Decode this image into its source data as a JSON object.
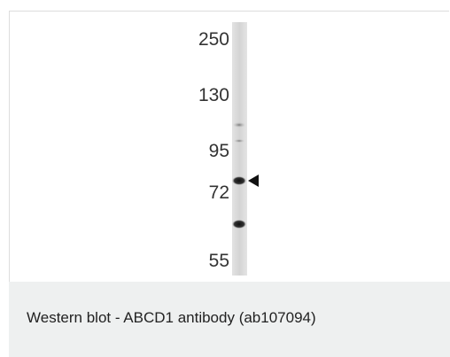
{
  "figure": {
    "markers": [
      "250",
      "130",
      "95",
      "72",
      "55"
    ]
  },
  "caption": "Western blot - ABCD1 antibody (ab107094)"
}
